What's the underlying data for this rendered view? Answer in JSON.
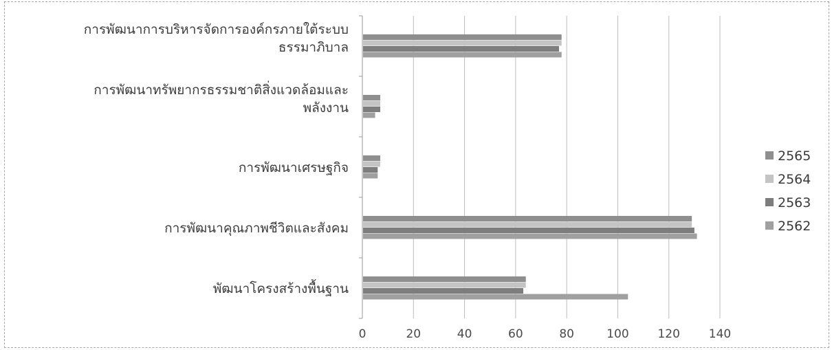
{
  "chart_data": {
    "type": "bar",
    "orientation": "horizontal",
    "title": "",
    "xlabel": "",
    "ylabel": "",
    "xlim": [
      0,
      140
    ],
    "xticks": [
      0,
      20,
      40,
      60,
      80,
      100,
      120,
      140
    ],
    "grid": "vertical",
    "legend_position": "right",
    "categories": [
      [
        "การพัฒนาการบริหารจัดการองค์กรภายใต้ระบบ",
        "ธรรมาภิบาล"
      ],
      [
        "การพัฒนาทรัพยากรธรรมชาติสิ่งแวดล้อมและ",
        "พลังงาน"
      ],
      [
        "การพัฒนาเศรษฐกิจ"
      ],
      [
        "การพัฒนาคุณภาพชีวิตและสังคม"
      ],
      [
        "พัฒนาโครงสร้างพื้นฐาน"
      ]
    ],
    "series": [
      {
        "name": "2565",
        "color": "#8f8f8f",
        "values": [
          78,
          7,
          7,
          129,
          64
        ]
      },
      {
        "name": "2564",
        "color": "#c4c4c4",
        "values": [
          78,
          7,
          7,
          129,
          64
        ]
      },
      {
        "name": "2563",
        "color": "#7d7d7d",
        "values": [
          77,
          7,
          6,
          130,
          63
        ]
      },
      {
        "name": "2562",
        "color": "#a0a0a0",
        "values": [
          78,
          5,
          6,
          131,
          104
        ]
      }
    ]
  }
}
